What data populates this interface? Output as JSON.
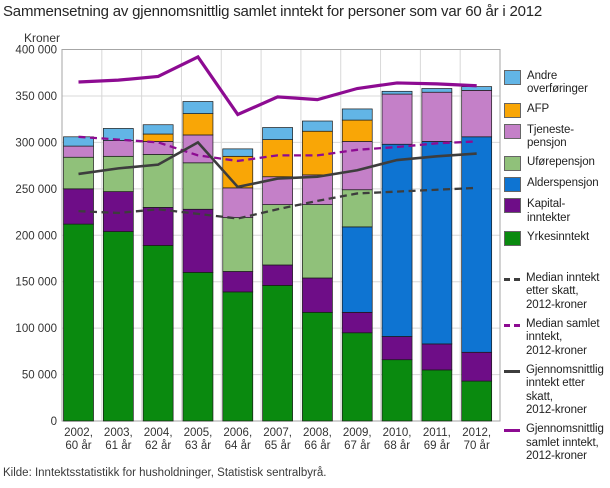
{
  "title": "Sammensetning av gjennomsnittlig samlet inntekt for personer som var 60 år i 2012",
  "y_axis": {
    "label": "Kroner"
  },
  "footer": "Kilde: Inntektsstatistikk for husholdninger, Statistisk sentralbyrå.",
  "chart_data": {
    "type": "bar",
    "subtype": "stacked-bar-with-lines",
    "grid": true,
    "legend_position": "right",
    "ylim": [
      0,
      400000
    ],
    "y_tick_step": 50000,
    "y_tick_labels": [
      "0",
      "50 000",
      "100 000",
      "150 000",
      "200 000",
      "250 000",
      "300 000",
      "350 000",
      "400 000"
    ],
    "categories": [
      {
        "line1": "2002,",
        "line2": "60 år"
      },
      {
        "line1": "2003,",
        "line2": "61 år"
      },
      {
        "line1": "2004,",
        "line2": "62 år"
      },
      {
        "line1": "2005,",
        "line2": "63 år"
      },
      {
        "line1": "2006,",
        "line2": "64 år"
      },
      {
        "line1": "2007,",
        "line2": "65 år"
      },
      {
        "line1": "2008,",
        "line2": "66 år"
      },
      {
        "line1": "2009,",
        "line2": "67 år"
      },
      {
        "line1": "2010,",
        "line2": "68 år"
      },
      {
        "line1": "2011,",
        "line2": "69 år"
      },
      {
        "line1": "2012,",
        "line2": "70 år"
      }
    ],
    "bar_series": [
      {
        "name": "Yrkesinntekt",
        "color": "#0a8a0f",
        "values": [
          212000,
          204000,
          189000,
          160000,
          139000,
          146000,
          117000,
          95000,
          66000,
          55000,
          43000
        ]
      },
      {
        "name": "Kapitalinntekter",
        "color": "#6e0d87",
        "values": [
          38000,
          43000,
          41000,
          68000,
          22000,
          22000,
          37000,
          22000,
          25000,
          28000,
          31000
        ]
      },
      {
        "name": "Alderspensjon",
        "color": "#0e74d2",
        "values": [
          0,
          0,
          0,
          0,
          0,
          0,
          0,
          92000,
          207000,
          218000,
          232000
        ]
      },
      {
        "name": "Uførepensjon",
        "color": "#90c17a",
        "values": [
          34000,
          38000,
          57000,
          50000,
          58000,
          65000,
          79000,
          40000,
          0,
          0,
          0
        ]
      },
      {
        "name": "Tjenestepensjon",
        "color": "#c480c8",
        "values": [
          12000,
          17000,
          14000,
          30000,
          32000,
          30000,
          32000,
          52000,
          54000,
          53000,
          50000
        ]
      },
      {
        "name": "AFP",
        "color": "#f9a606",
        "values": [
          0,
          0,
          8000,
          23000,
          34000,
          40000,
          47000,
          23000,
          0,
          0,
          0
        ]
      },
      {
        "name": "Andre overføringer",
        "color": "#62b5e6",
        "values": [
          10000,
          13000,
          10000,
          13000,
          8000,
          13000,
          11000,
          12000,
          3000,
          4000,
          4000
        ]
      }
    ],
    "line_series": [
      {
        "name": "Median inntekt etter skatt, 2012-kroner",
        "color": "#3d3d3d",
        "style": "dashed",
        "width": 2.3,
        "values": [
          226000,
          224000,
          228000,
          223000,
          218000,
          228000,
          237000,
          245000,
          247000,
          249000,
          251000
        ]
      },
      {
        "name": "Median samlet inntekt, 2012-kroner",
        "color": "#8d0b92",
        "style": "dashed",
        "width": 2.3,
        "values": [
          306000,
          303000,
          300000,
          286000,
          280000,
          286000,
          286000,
          292000,
          295000,
          299000,
          301000
        ]
      },
      {
        "name": "Gjennomsnittlig inntekt etter skatt, 2012-kroner",
        "color": "#3d3d3d",
        "style": "solid",
        "width": 2.6,
        "values": [
          266000,
          272000,
          276000,
          300000,
          252000,
          261000,
          263000,
          270000,
          281000,
          285000,
          288000
        ]
      },
      {
        "name": "Gjennomsnittlig samlet inntekt, 2012-kroner",
        "color": "#8d0b92",
        "style": "solid",
        "width": 3.2,
        "values": [
          365000,
          367000,
          371000,
          392000,
          330000,
          349000,
          346000,
          358000,
          364000,
          363000,
          361000
        ]
      }
    ]
  },
  "legend": {
    "bar_items": [
      {
        "label": "Andre\noverføringer",
        "color": "#62b5e6"
      },
      {
        "label": "AFP",
        "color": "#f9a606"
      },
      {
        "label": "Tjeneste-\npensjon",
        "color": "#c480c8"
      },
      {
        "label": "Uførepensjon",
        "color": "#90c17a"
      },
      {
        "label": "Alderspensjon",
        "color": "#0e74d2"
      },
      {
        "label": "Kapital-\ninntekter",
        "color": "#6e0d87"
      },
      {
        "label": "Yrkesinntekt",
        "color": "#0a8a0f"
      }
    ],
    "line_items": [
      {
        "label": "Median inntekt\netter skatt,\n2012-kroner",
        "color": "#3d3d3d",
        "style": "dashed"
      },
      {
        "label": "Median samlet\ninntekt,\n2012-kroner",
        "color": "#8d0b92",
        "style": "dashed"
      },
      {
        "label": "Gjennomsnittlig\ninntekt etter skatt,\n2012-kroner",
        "color": "#3d3d3d",
        "style": "solid"
      },
      {
        "label": "Gjennomsnittlig\nsamlet inntekt,\n2012-kroner",
        "color": "#8d0b92",
        "style": "solid"
      }
    ]
  }
}
